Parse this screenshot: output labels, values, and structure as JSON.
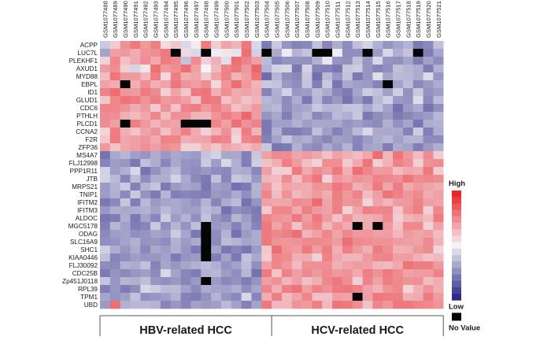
{
  "chart_data": {
    "type": "heatmap",
    "columns": [
      "GSM1077488",
      "GSM1077489",
      "GSM1077490",
      "GSM1077491",
      "GSM1077492",
      "GSM1077493",
      "GSM1077494",
      "GSM1077495",
      "GSM1077496",
      "GSM1077497",
      "GSM1077498",
      "GSM1077499",
      "GSM1077500",
      "GSM1077501",
      "GSM1077502",
      "GSM1077503",
      "GSM1077504",
      "GSM1077505",
      "GSM1077506",
      "GSM1077507",
      "GSM1077508",
      "GSM1077509",
      "GSM1077510",
      "GSM1077511",
      "GSM1077512",
      "GSM1077513",
      "GSM1077514",
      "GSM1077515",
      "GSM1077516",
      "GSM1077517",
      "GSM1077518",
      "GSM1077519",
      "GSM1077520",
      "GSM1077521"
    ],
    "rows": [
      "ACPP",
      "LUC7L",
      "PLEKHF1",
      "AXUD1",
      "MYD88",
      "EBPL",
      "ID1",
      "GLUD1",
      "CDC6",
      "PTHLH",
      "PLCD1",
      "CCNA2",
      "F2R",
      "ZFP36",
      "MS4A7",
      "FLJ12998",
      "PPP1R11",
      "JTB",
      "MRPS21",
      "TNIP1",
      "IFITM2",
      "IFITM3",
      "ALDOC",
      "MGC5178",
      "ODAG",
      "SLC16A9",
      "SHC1",
      "KIAA0446",
      "FLJ30092",
      "CDC25B",
      "Zp451J0118",
      "RPL39",
      "TPM1",
      "UBD"
    ],
    "groups": [
      {
        "label": "HBV-related HCC",
        "start": 0,
        "end": 16
      },
      {
        "label": "HCV-related HCC",
        "start": 17,
        "end": 33
      }
    ],
    "legend": {
      "high": "High",
      "low": "Low",
      "na": "No Value"
    },
    "colors": {
      "high": "#e8262b",
      "mid": "#f4f2f7",
      "low": "#2d2c86",
      "na": "#050505"
    },
    "scale_min": -1,
    "scale_max": 1,
    "values": [
      [
        -0.21,
        0.2,
        0.47,
        0.6,
        0.43,
        0.56,
        0.12,
        0.21,
        -0.13,
        0.04,
        0.59,
        0.19,
        0.38,
        0.3,
        0.6,
        -0.13,
        -0.6,
        -0.21,
        -0.47,
        -0.56,
        -0.53,
        -0.25,
        -0.55,
        -0.35,
        -0.51,
        -0.25,
        -0.16,
        -0.33,
        -0.47,
        -0.4,
        -0.32,
        -0.6,
        -0.53,
        -0.25
      ],
      [
        -0.4,
        0.4,
        0.43,
        0.34,
        0.46,
        0.49,
        0.59,
        null,
        0.13,
        -0.13,
        null,
        -0.03,
        0.06,
        -0.07,
        0.63,
        -0.17,
        null,
        -0.36,
        -0.04,
        -0.32,
        -0.24,
        null,
        null,
        -0.03,
        -0.51,
        -0.5,
        null,
        -0.43,
        -0.14,
        -0.34,
        -0.24,
        null,
        -0.58,
        -0.39
      ],
      [
        0.16,
        0.52,
        0.25,
        0.36,
        0.49,
        0.36,
        0.58,
        0.51,
        -0.24,
        0.5,
        0.17,
        0.32,
        -0.1,
        0.64,
        0.54,
        0.4,
        -0.28,
        -0.55,
        -0.48,
        -0.47,
        -0.49,
        -0.33,
        -0.06,
        -0.47,
        -0.49,
        -0.25,
        -0.46,
        -0.14,
        -0.48,
        -0.5,
        -0.4,
        -0.59,
        -0.41,
        -0.51
      ],
      [
        0.42,
        0.49,
        0.17,
        -0.15,
        0.07,
        0.64,
        0.43,
        0.49,
        0.65,
        0.4,
        0.0,
        0.28,
        0.54,
        0.61,
        0.44,
        0.68,
        -0.32,
        -0.16,
        -0.14,
        -0.61,
        -0.17,
        -0.56,
        -0.57,
        -0.62,
        -0.22,
        -0.19,
        -0.46,
        -0.55,
        -0.5,
        -0.25,
        -0.31,
        -0.35,
        -0.59,
        -0.33
      ],
      [
        0.27,
        0.61,
        0.43,
        0.43,
        0.29,
        0.57,
        0.13,
        0.56,
        0.34,
        0.37,
        0.2,
        0.39,
        0.55,
        0.31,
        0.4,
        0.62,
        -0.67,
        -0.31,
        -0.5,
        -0.53,
        -0.21,
        -0.66,
        -0.29,
        -0.46,
        -0.24,
        -0.61,
        -0.47,
        -0.1,
        -0.4,
        -0.29,
        -0.3,
        -0.36,
        -0.12,
        -0.46
      ],
      [
        0.39,
        0.34,
        null,
        0.33,
        0.49,
        0.33,
        0.39,
        0.61,
        0.46,
        0.41,
        0.49,
        0.13,
        0.45,
        0.65,
        0.43,
        0.3,
        -0.21,
        -0.24,
        -0.45,
        -0.51,
        -0.24,
        -0.58,
        -0.21,
        -0.62,
        -0.37,
        -0.42,
        -0.44,
        -0.56,
        null,
        -0.4,
        -0.27,
        -0.53,
        -0.45,
        -0.35
      ],
      [
        0.55,
        0.65,
        0.45,
        0.42,
        0.58,
        0.51,
        0.17,
        0.38,
        0.21,
        0.59,
        0.62,
        0.33,
        0.49,
        0.36,
        0.39,
        0.34,
        -0.56,
        -0.34,
        -0.16,
        -0.45,
        -0.43,
        -0.27,
        -0.36,
        -0.53,
        -0.6,
        -0.39,
        -0.19,
        -0.25,
        -0.42,
        -0.18,
        -0.49,
        -0.21,
        -0.48,
        -0.43
      ],
      [
        0.21,
        0.52,
        0.62,
        0.59,
        0.46,
        0.57,
        0.43,
        0.48,
        0.4,
        0.23,
        0.61,
        0.58,
        0.24,
        0.35,
        0.23,
        0.3,
        -0.3,
        -0.35,
        -0.52,
        -0.35,
        -0.61,
        -0.3,
        -0.55,
        -0.45,
        -0.63,
        -0.45,
        -0.61,
        -0.29,
        -0.18,
        -0.45,
        -0.48,
        -0.11,
        -0.52,
        -0.28
      ],
      [
        0.54,
        0.53,
        0.46,
        0.35,
        0.44,
        0.2,
        0.47,
        0.23,
        0.54,
        0.57,
        0.44,
        0.55,
        0.45,
        0.24,
        0.32,
        0.44,
        -0.33,
        -0.29,
        -0.51,
        -0.41,
        -0.38,
        -0.21,
        -0.3,
        -0.3,
        -0.24,
        -0.23,
        -0.38,
        -0.25,
        -0.41,
        -0.65,
        -0.44,
        -0.36,
        -0.63,
        -0.5
      ],
      [
        0.5,
        0.49,
        0.33,
        0.27,
        0.37,
        0.53,
        0.26,
        0.48,
        0.47,
        0.31,
        0.29,
        0.46,
        0.57,
        0.48,
        0.68,
        0.42,
        -0.47,
        -0.38,
        -0.58,
        -0.38,
        -0.31,
        -0.53,
        -0.46,
        -0.29,
        -0.34,
        -0.21,
        -0.61,
        -0.51,
        -0.44,
        -0.6,
        -0.54,
        -0.48,
        -0.44,
        -0.3
      ],
      [
        0.49,
        0.4,
        null,
        0.56,
        0.44,
        0.31,
        0.41,
        0.38,
        null,
        null,
        null,
        0.53,
        0.4,
        0.63,
        0.47,
        0.54,
        -0.61,
        -0.42,
        -0.42,
        -0.33,
        -0.42,
        -0.38,
        -0.38,
        -0.38,
        -0.47,
        -0.42,
        -0.49,
        -0.52,
        -0.33,
        -0.49,
        -0.39,
        -0.62,
        -0.35,
        -0.33
      ],
      [
        0.14,
        0.58,
        0.33,
        0.23,
        0.38,
        0.46,
        0.25,
        0.41,
        0.56,
        0.35,
        0.17,
        0.3,
        0.47,
        0.19,
        0.58,
        0.31,
        -0.61,
        -0.33,
        -0.58,
        -0.59,
        -0.53,
        -0.25,
        -0.42,
        -0.57,
        -0.45,
        -0.29,
        -0.14,
        -0.36,
        -0.37,
        -0.37,
        -0.57,
        -0.19,
        -0.58,
        -0.35
      ],
      [
        0.21,
        0.59,
        0.37,
        0.4,
        0.45,
        0.36,
        0.55,
        0.54,
        0.33,
        0.37,
        0.38,
        0.56,
        0.53,
        0.14,
        0.53,
        0.58,
        -0.57,
        -0.4,
        -0.23,
        -0.38,
        -0.34,
        -0.47,
        -0.54,
        -0.42,
        -0.44,
        -0.55,
        -0.44,
        -0.35,
        -0.3,
        -0.41,
        -0.32,
        -0.32,
        -0.52,
        -0.52
      ],
      [
        0.44,
        0.23,
        0.37,
        0.41,
        0.48,
        0.41,
        0.49,
        0.45,
        0.16,
        0.16,
        0.31,
        0.22,
        0.37,
        0.32,
        0.26,
        0.35,
        -0.21,
        -0.62,
        -0.6,
        -0.33,
        -0.48,
        -0.52,
        -0.36,
        -0.47,
        -0.32,
        -0.56,
        -0.4,
        -0.38,
        -0.59,
        -0.36,
        -0.4,
        -0.58,
        -0.44,
        -0.34
      ],
      [
        -0.64,
        -0.37,
        -0.31,
        -0.42,
        -0.46,
        -0.35,
        -0.45,
        -0.38,
        -0.41,
        -0.44,
        -0.23,
        -0.16,
        -0.38,
        -0.37,
        -0.58,
        -0.22,
        0.4,
        0.51,
        0.5,
        0.38,
        0.43,
        0.37,
        0.24,
        0.39,
        0.33,
        0.26,
        0.37,
        0.65,
        0.3,
        0.62,
        0.45,
        0.27,
        0.5,
        0.18
      ],
      [
        -0.56,
        -0.43,
        -0.46,
        -0.61,
        -0.25,
        -0.35,
        -0.54,
        -0.37,
        -0.47,
        -0.49,
        -0.2,
        -0.43,
        -0.14,
        -0.34,
        -0.58,
        -0.18,
        0.24,
        0.33,
        0.56,
        0.42,
        0.25,
        0.16,
        0.49,
        0.49,
        0.19,
        0.36,
        0.62,
        0.17,
        0.31,
        0.55,
        0.48,
        0.17,
        0.46,
        0.5
      ],
      [
        -0.17,
        -0.43,
        -0.34,
        -0.14,
        -0.63,
        -0.49,
        -0.36,
        -0.28,
        -0.48,
        -0.51,
        -0.45,
        -0.51,
        -0.53,
        -0.34,
        -0.36,
        -0.54,
        0.41,
        0.17,
        0.18,
        0.59,
        0.36,
        0.49,
        0.42,
        0.6,
        0.33,
        0.65,
        0.53,
        0.42,
        0.44,
        0.27,
        0.36,
        0.34,
        0.6,
        0.19
      ],
      [
        -0.16,
        -0.29,
        -0.55,
        -0.27,
        -0.51,
        -0.35,
        -0.35,
        -0.16,
        -0.36,
        -0.53,
        -0.6,
        -0.25,
        -0.55,
        -0.22,
        -0.27,
        -0.45,
        0.3,
        0.27,
        0.49,
        0.26,
        0.48,
        0.61,
        0.15,
        0.43,
        0.39,
        0.46,
        0.44,
        0.54,
        0.51,
        0.48,
        0.61,
        0.5,
        0.53,
        0.49
      ],
      [
        -0.44,
        -0.33,
        -0.2,
        -0.57,
        -0.32,
        -0.23,
        -0.6,
        -0.44,
        -0.39,
        -0.42,
        -0.62,
        -0.42,
        -0.45,
        -0.65,
        -0.6,
        -0.32,
        0.45,
        0.23,
        0.38,
        0.36,
        0.34,
        0.46,
        0.45,
        0.6,
        0.53,
        0.32,
        0.38,
        0.59,
        0.37,
        0.57,
        0.35,
        0.44,
        0.38,
        0.34
      ],
      [
        -0.43,
        -0.34,
        -0.53,
        -0.21,
        -0.48,
        -0.6,
        -0.31,
        -0.58,
        -0.55,
        -0.57,
        -0.59,
        -0.45,
        -0.48,
        -0.36,
        -0.5,
        -0.33,
        0.53,
        0.26,
        0.47,
        0.28,
        0.35,
        0.43,
        0.34,
        0.57,
        0.43,
        0.54,
        0.26,
        0.41,
        0.62,
        0.55,
        0.45,
        0.5,
        0.35,
        0.4
      ],
      [
        -0.61,
        -0.53,
        -0.22,
        -0.58,
        -0.29,
        -0.45,
        -0.39,
        -0.37,
        -0.42,
        -0.49,
        -0.32,
        -0.55,
        -0.36,
        -0.28,
        -0.64,
        -0.47,
        0.4,
        0.37,
        0.37,
        0.5,
        0.47,
        0.67,
        0.38,
        0.56,
        0.45,
        0.47,
        0.15,
        0.39,
        0.3,
        0.42,
        0.44,
        0.55,
        0.4,
        0.38
      ],
      [
        -0.46,
        -0.35,
        -0.38,
        -0.36,
        -0.33,
        -0.41,
        -0.29,
        -0.37,
        -0.42,
        -0.42,
        -0.28,
        -0.34,
        -0.64,
        -0.5,
        -0.54,
        -0.6,
        0.2,
        0.52,
        0.53,
        0.36,
        0.56,
        0.44,
        0.39,
        0.56,
        0.16,
        0.38,
        0.56,
        0.52,
        0.54,
        0.22,
        0.46,
        0.56,
        0.17,
        0.52
      ],
      [
        -0.62,
        -0.59,
        -0.35,
        -0.61,
        -0.4,
        -0.54,
        -0.19,
        -0.44,
        -0.32,
        -0.5,
        -0.24,
        -0.48,
        -0.55,
        -0.31,
        -0.43,
        -0.59,
        0.53,
        0.46,
        0.44,
        0.6,
        0.41,
        0.6,
        0.42,
        0.25,
        0.46,
        0.3,
        0.34,
        0.37,
        0.51,
        0.18,
        0.31,
        0.35,
        0.27,
        0.58
      ],
      [
        -0.58,
        -0.31,
        -0.41,
        -0.59,
        -0.55,
        -0.21,
        -0.5,
        -0.31,
        -0.48,
        -0.26,
        null,
        -0.45,
        -0.41,
        -0.56,
        -0.39,
        -0.56,
        0.59,
        0.38,
        0.51,
        0.23,
        0.47,
        0.54,
        0.29,
        0.45,
        0.35,
        null,
        0.35,
        null,
        0.43,
        0.24,
        0.51,
        0.51,
        0.16,
        0.39
      ],
      [
        -0.53,
        -0.43,
        -0.4,
        -0.5,
        -0.47,
        -0.4,
        -0.43,
        -0.2,
        -0.39,
        -0.61,
        null,
        -0.51,
        -0.32,
        -0.64,
        -0.44,
        -0.36,
        0.59,
        0.52,
        0.56,
        0.63,
        0.31,
        0.39,
        0.53,
        0.38,
        0.52,
        0.44,
        0.45,
        0.4,
        0.41,
        0.29,
        0.43,
        0.38,
        0.41,
        0.27
      ],
      [
        -0.5,
        -0.47,
        -0.4,
        -0.33,
        -0.48,
        -0.46,
        -0.51,
        -0.33,
        -0.44,
        -0.36,
        null,
        -0.52,
        -0.27,
        -0.32,
        -0.4,
        -0.36,
        0.6,
        0.46,
        0.45,
        0.47,
        0.51,
        0.52,
        0.49,
        0.42,
        0.64,
        0.51,
        0.49,
        0.46,
        0.47,
        0.42,
        0.41,
        0.39,
        0.51,
        0.31
      ],
      [
        -0.18,
        -0.35,
        -0.46,
        -0.36,
        -0.53,
        -0.38,
        -0.43,
        -0.34,
        -0.46,
        -0.6,
        null,
        -0.4,
        -0.61,
        -0.55,
        -0.62,
        -0.44,
        0.21,
        0.64,
        0.46,
        0.42,
        0.59,
        0.42,
        0.57,
        0.33,
        0.56,
        0.43,
        0.33,
        0.58,
        0.5,
        0.32,
        0.34,
        0.45,
        0.5,
        0.15
      ],
      [
        -0.26,
        -0.55,
        -0.5,
        -0.43,
        -0.46,
        -0.46,
        -0.41,
        -0.6,
        -0.48,
        -0.44,
        null,
        -0.58,
        -0.4,
        -0.61,
        -0.25,
        -0.37,
        0.19,
        0.53,
        0.5,
        0.33,
        0.35,
        0.16,
        0.55,
        0.37,
        0.3,
        0.31,
        0.43,
        0.53,
        0.54,
        0.4,
        0.42,
        0.32,
        0.24,
        0.28
      ],
      [
        -0.51,
        -0.53,
        -0.33,
        -0.36,
        -0.25,
        -0.56,
        -0.39,
        -0.46,
        -0.39,
        -0.33,
        -0.28,
        -0.34,
        -0.48,
        -0.41,
        -0.27,
        -0.5,
        0.39,
        0.52,
        0.45,
        0.27,
        0.48,
        0.48,
        0.48,
        0.32,
        0.38,
        0.43,
        0.41,
        0.3,
        0.28,
        0.36,
        0.62,
        0.57,
        0.57,
        0.43
      ],
      [
        -0.6,
        -0.48,
        -0.53,
        -0.46,
        -0.42,
        -0.52,
        -0.14,
        -0.4,
        -0.54,
        -0.59,
        -0.33,
        -0.3,
        -0.43,
        -0.5,
        -0.31,
        -0.64,
        0.59,
        0.22,
        0.55,
        0.41,
        0.51,
        0.43,
        0.51,
        0.44,
        0.47,
        0.35,
        0.57,
        0.47,
        0.59,
        0.5,
        0.39,
        0.42,
        0.42,
        0.55
      ],
      [
        -0.23,
        -0.46,
        -0.31,
        -0.34,
        -0.26,
        -0.46,
        -0.5,
        -0.45,
        -0.55,
        -0.45,
        null,
        -0.44,
        -0.53,
        -0.49,
        -0.59,
        -0.47,
        0.41,
        0.46,
        0.3,
        0.41,
        0.25,
        0.34,
        0.52,
        0.6,
        0.49,
        0.17,
        0.54,
        0.39,
        0.57,
        0.51,
        0.46,
        0.48,
        0.27,
        0.34
      ],
      [
        -0.58,
        -0.46,
        -0.59,
        -0.51,
        -0.14,
        -0.2,
        -0.29,
        -0.28,
        -0.41,
        -0.52,
        -0.36,
        -0.4,
        -0.41,
        -0.35,
        -0.5,
        -0.39,
        0.53,
        0.33,
        0.56,
        0.62,
        0.4,
        0.55,
        0.47,
        0.58,
        0.6,
        0.55,
        0.39,
        0.31,
        0.47,
        0.52,
        0.15,
        0.32,
        0.46,
        0.34
      ],
      [
        -0.39,
        -0.48,
        -0.42,
        -0.25,
        -0.49,
        -0.46,
        -0.42,
        -0.32,
        -0.56,
        -0.59,
        -0.49,
        -0.32,
        -0.47,
        -0.53,
        -0.14,
        -0.55,
        0.34,
        0.57,
        0.27,
        0.38,
        0.53,
        0.25,
        0.25,
        0.41,
        0.39,
        null,
        0.4,
        0.6,
        0.58,
        0.57,
        0.32,
        0.35,
        0.58,
        0.42
      ],
      [
        -0.44,
        0.64,
        -0.33,
        -0.3,
        -0.3,
        -0.32,
        -0.55,
        -0.46,
        -0.55,
        -0.41,
        -0.45,
        -0.42,
        -0.29,
        -0.41,
        -0.57,
        -0.4,
        0.6,
        0.29,
        0.29,
        0.46,
        0.42,
        0.56,
        0.28,
        0.62,
        0.59,
        0.49,
        0.24,
        0.53,
        0.45,
        0.6,
        0.59,
        0.54,
        0.52,
        0.46
      ]
    ]
  }
}
